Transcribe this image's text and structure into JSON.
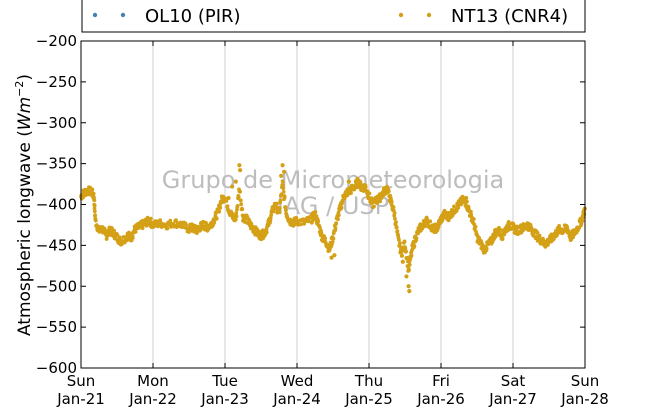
{
  "chart_data": {
    "type": "scatter",
    "title": "",
    "ylabel_prefix": "Atmospheric longwave (",
    "ylabel_unit_base": "Wm",
    "ylabel_unit_exp": "−2",
    "ylabel_suffix": ")",
    "ylim": [
      -600,
      -200
    ],
    "yticks": [
      -200,
      -250,
      -300,
      -350,
      -400,
      -450,
      -500,
      -550,
      -600
    ],
    "ytick_labels": [
      "−200",
      "−250",
      "−300",
      "−350",
      "−400",
      "−450",
      "−500",
      "−550",
      "−600"
    ],
    "x_type": "time",
    "xlim_days": [
      0,
      7
    ],
    "xticks": [
      {
        "day": "Sun",
        "date": "Jan-21"
      },
      {
        "day": "Mon",
        "date": "Jan-22"
      },
      {
        "day": "Tue",
        "date": "Jan-23"
      },
      {
        "day": "Wed",
        "date": "Jan-24"
      },
      {
        "day": "Thu",
        "date": "Jan-25"
      },
      {
        "day": "Fri",
        "date": "Jan-26"
      },
      {
        "day": "Sat",
        "date": "Jan-27"
      },
      {
        "day": "Sun",
        "date": "Jan-28"
      }
    ],
    "grid": "vertical",
    "legend_position": "top, above plot",
    "watermark_lines": [
      "Grupo de Micrometeorologia",
      "IAG / USP"
    ],
    "series": [
      {
        "name": "OL10 (PIR)",
        "color": "#4682b4",
        "points": []
      },
      {
        "name": "NT13 (CNR4)",
        "color": "#d4a017",
        "points": [
          [
            0.0,
            -390
          ],
          [
            0.05,
            -385
          ],
          [
            0.1,
            -383
          ],
          [
            0.15,
            -385
          ],
          [
            0.18,
            -390
          ],
          [
            0.2,
            -420
          ],
          [
            0.25,
            -432
          ],
          [
            0.3,
            -430
          ],
          [
            0.35,
            -438
          ],
          [
            0.4,
            -432
          ],
          [
            0.45,
            -435
          ],
          [
            0.5,
            -440
          ],
          [
            0.55,
            -445
          ],
          [
            0.6,
            -442
          ],
          [
            0.65,
            -438
          ],
          [
            0.7,
            -440
          ],
          [
            0.75,
            -430
          ],
          [
            0.8,
            -428
          ],
          [
            0.85,
            -425
          ],
          [
            0.9,
            -422
          ],
          [
            0.95,
            -420
          ],
          [
            1.0,
            -425
          ],
          [
            1.1,
            -423
          ],
          [
            1.2,
            -425
          ],
          [
            1.3,
            -422
          ],
          [
            1.4,
            -425
          ],
          [
            1.5,
            -430
          ],
          [
            1.55,
            -428
          ],
          [
            1.6,
            -432
          ],
          [
            1.65,
            -428
          ],
          [
            1.7,
            -425
          ],
          [
            1.75,
            -428
          ],
          [
            1.8,
            -425
          ],
          [
            1.85,
            -418
          ],
          [
            1.9,
            -410
          ],
          [
            1.95,
            -395
          ],
          [
            2.0,
            -390
          ],
          [
            2.05,
            -405
          ],
          [
            2.1,
            -415
          ],
          [
            2.15,
            -418
          ],
          [
            2.2,
            -380
          ],
          [
            2.25,
            -415
          ],
          [
            2.3,
            -418
          ],
          [
            2.35,
            -425
          ],
          [
            2.4,
            -430
          ],
          [
            2.45,
            -435
          ],
          [
            2.5,
            -438
          ],
          [
            2.55,
            -435
          ],
          [
            2.6,
            -425
          ],
          [
            2.65,
            -410
          ],
          [
            2.7,
            -400
          ],
          [
            2.75,
            -410
          ],
          [
            2.8,
            -375
          ],
          [
            2.85,
            -410
          ],
          [
            2.9,
            -420
          ],
          [
            2.95,
            -422
          ],
          [
            3.0,
            -420
          ],
          [
            3.1,
            -422
          ],
          [
            3.2,
            -418
          ],
          [
            3.25,
            -412
          ],
          [
            3.3,
            -425
          ],
          [
            3.35,
            -440
          ],
          [
            3.4,
            -445
          ],
          [
            3.45,
            -455
          ],
          [
            3.5,
            -440
          ],
          [
            3.55,
            -420
          ],
          [
            3.6,
            -405
          ],
          [
            3.65,
            -390
          ],
          [
            3.7,
            -385
          ],
          [
            3.75,
            -382
          ],
          [
            3.8,
            -378
          ],
          [
            3.85,
            -372
          ],
          [
            3.9,
            -380
          ],
          [
            3.95,
            -378
          ],
          [
            4.0,
            -390
          ],
          [
            4.05,
            -400
          ],
          [
            4.1,
            -395
          ],
          [
            4.15,
            -392
          ],
          [
            4.2,
            -385
          ],
          [
            4.25,
            -380
          ],
          [
            4.3,
            -395
          ],
          [
            4.35,
            -410
          ],
          [
            4.4,
            -440
          ],
          [
            4.45,
            -460
          ],
          [
            4.5,
            -448
          ],
          [
            4.55,
            -480
          ],
          [
            4.6,
            -455
          ],
          [
            4.65,
            -440
          ],
          [
            4.7,
            -430
          ],
          [
            4.75,
            -425
          ],
          [
            4.8,
            -420
          ],
          [
            4.85,
            -425
          ],
          [
            4.9,
            -430
          ],
          [
            4.95,
            -428
          ],
          [
            5.0,
            -418
          ],
          [
            5.05,
            -412
          ],
          [
            5.1,
            -415
          ],
          [
            5.15,
            -410
          ],
          [
            5.2,
            -405
          ],
          [
            5.25,
            -400
          ],
          [
            5.3,
            -395
          ],
          [
            5.35,
            -398
          ],
          [
            5.4,
            -410
          ],
          [
            5.45,
            -420
          ],
          [
            5.5,
            -440
          ],
          [
            5.55,
            -448
          ],
          [
            5.6,
            -455
          ],
          [
            5.65,
            -450
          ],
          [
            5.7,
            -445
          ],
          [
            5.75,
            -435
          ],
          [
            5.8,
            -432
          ],
          [
            5.85,
            -438
          ],
          [
            5.9,
            -430
          ],
          [
            5.95,
            -425
          ],
          [
            6.0,
            -428
          ],
          [
            6.05,
            -432
          ],
          [
            6.1,
            -430
          ],
          [
            6.15,
            -428
          ],
          [
            6.2,
            -425
          ],
          [
            6.25,
            -430
          ],
          [
            6.3,
            -435
          ],
          [
            6.35,
            -440
          ],
          [
            6.4,
            -445
          ],
          [
            6.45,
            -448
          ],
          [
            6.5,
            -445
          ],
          [
            6.55,
            -440
          ],
          [
            6.6,
            -435
          ],
          [
            6.65,
            -430
          ],
          [
            6.7,
            -432
          ],
          [
            6.75,
            -428
          ],
          [
            6.8,
            -440
          ],
          [
            6.85,
            -435
          ],
          [
            6.9,
            -428
          ],
          [
            6.95,
            -420
          ],
          [
            7.0,
            -405
          ]
        ],
        "outliers": [
          [
            2.2,
            -352
          ],
          [
            2.21,
            -358
          ],
          [
            2.8,
            -352
          ],
          [
            2.82,
            -360
          ],
          [
            2.78,
            -365
          ],
          [
            2.15,
            -372
          ],
          [
            2.1,
            -378
          ],
          [
            3.48,
            -465
          ],
          [
            4.55,
            -500
          ],
          [
            4.56,
            -506
          ],
          [
            4.52,
            -488
          ],
          [
            4.47,
            -470
          ],
          [
            3.52,
            -462
          ],
          [
            2.05,
            -392
          ],
          [
            3.72,
            -372
          ],
          [
            5.35,
            -392
          ]
        ]
      }
    ]
  }
}
